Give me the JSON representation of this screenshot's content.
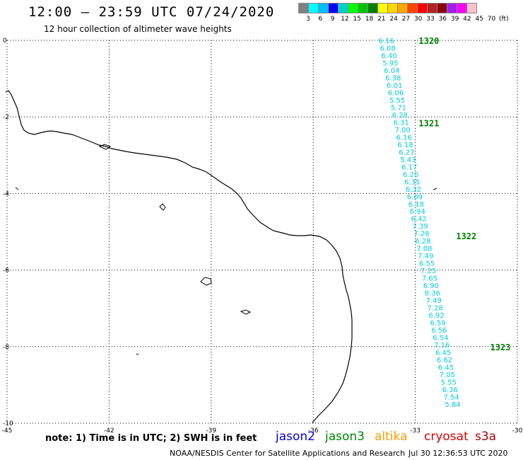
{
  "header": {
    "title": "12:00 – 23:59 UTC 07/24/2020",
    "subtitle": "12 hour collection of altimeter wave heights"
  },
  "color_scale": {
    "colors": [
      "#808080",
      "#00ffff",
      "#00bfff",
      "#0000ff",
      "#00cdcd",
      "#00ff00",
      "#00c800",
      "#008000",
      "#ffff00",
      "#ffd700",
      "#ffa500",
      "#ff4500",
      "#ff0000",
      "#b22222",
      "#8b0000",
      "#a020f0",
      "#ff00ff",
      "#ffc0cb"
    ],
    "labels": [
      "3",
      "6",
      "9",
      "12",
      "15",
      "18",
      "21",
      "24",
      "27",
      "30",
      "33",
      "36",
      "39",
      "42",
      "45",
      "70",
      "(ft)"
    ]
  },
  "chart_data": {
    "type": "map",
    "x_ticks": [
      "-45",
      "-42",
      "-39",
      "-36",
      "-33",
      "-30"
    ],
    "y_ticks": [
      "0",
      "-2",
      "-4",
      "-6",
      "-8",
      "-10"
    ],
    "xlim": [
      -45,
      -30
    ],
    "ylim": [
      -10,
      0
    ],
    "swh_color": "#00ccdd",
    "label_color": "#008000",
    "pass_labels": [
      {
        "text": "1320",
        "lon": -32.6,
        "lat": 0.0
      },
      {
        "text": "1321",
        "lon": -32.6,
        "lat": -2.15
      },
      {
        "text": "1322",
        "lon": -31.5,
        "lat": -5.1
      },
      {
        "text": "1323",
        "lon": -30.5,
        "lat": -8.0
      }
    ],
    "track": {
      "lon_start": -33.85,
      "lon_end": -31.9,
      "lat_start": 0.0,
      "lat_end": -9.5,
      "values": [
        "6.16",
        "6.08",
        "6.40",
        "5.95",
        "6.04",
        "6.38",
        "6.01",
        "6.06",
        "5.55",
        "5.71",
        "6.28",
        "6.31",
        "7.00",
        "6.16",
        "6.18",
        "6.27",
        "5.43",
        "6.17",
        "6.20",
        "6.35",
        "6.32",
        "6.09",
        "6.18",
        "6.94",
        "6.42",
        "7.39",
        "7.28",
        "6.28",
        "7.08",
        "7.49",
        "6.55",
        "7.25",
        "7.65",
        "6.90",
        "8.36",
        "7.49",
        "7.28",
        "6.92",
        "6.59",
        "6.56",
        "6.54",
        "7.16",
        "6.45",
        "6.62",
        "6.45",
        "7.05",
        "5.55",
        "6.36",
        "7.54",
        "5.84"
      ]
    }
  },
  "note": "note: 1) Time is in UTC; 2) SWH is in feet",
  "satellites": [
    {
      "name": "jason2",
      "color": "#0000dd"
    },
    {
      "name": "jason3",
      "color": "#008800"
    },
    {
      "name": "altika",
      "color": "#ff9900"
    },
    {
      "name": "cryosat",
      "color": "#dd0000"
    },
    {
      "name": "s3a",
      "color": "#aa0000"
    }
  ],
  "footer": {
    "credit": "NOAA/NESDIS Center for Satellite Applications and Research",
    "timestamp": "Jul 30 12:36:53 UTC 2020"
  }
}
